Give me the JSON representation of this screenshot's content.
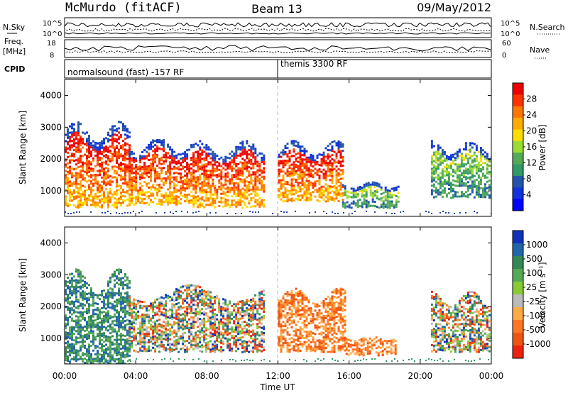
{
  "header": {
    "station": "McMurdo (fitACF)",
    "beam": "Beam 13",
    "date": "09/May/2012"
  },
  "status_panels": {
    "left_labels": [
      "N.Sky",
      "Freq.",
      "[MHz]",
      "CPID"
    ],
    "right_labels": [
      "N.Search",
      "Nave"
    ],
    "nsky_ticks": [
      "10^5",
      "10^0"
    ],
    "nsearch_ticks": [
      "10^5",
      "10^0"
    ],
    "freq_ticks": [
      "18",
      "8"
    ],
    "nave_ticks": [
      "60",
      "0"
    ],
    "cpid_segments": [
      {
        "label": "normalsound (fast) -157 RF",
        "start_hour": 0
      },
      {
        "label": "themis 3300 RF",
        "start_hour": 12
      }
    ]
  },
  "time_axis": {
    "label": "Time UT",
    "ticks": [
      "00:00",
      "04:00",
      "08:00",
      "12:00",
      "16:00",
      "20:00",
      "00:00"
    ]
  },
  "chart_data": [
    {
      "type": "heatmap",
      "title": "",
      "xlabel": "Time UT",
      "ylabel": "Slant Range [km]",
      "xlim": [
        0,
        24
      ],
      "ylim": [
        200,
        4500
      ],
      "y_ticks": [
        "1000",
        "2000",
        "3000",
        "4000"
      ],
      "colorbar": {
        "label": "Power [dB]",
        "ticks": [
          "28",
          "24",
          "20",
          "16",
          "12",
          "8",
          "4"
        ],
        "colors": [
          "#ee0000",
          "#ff3300",
          "#ff7700",
          "#ffaa00",
          "#ffdd00",
          "#99dd33",
          "#55aa55",
          "#339966",
          "#2255aa",
          "#1133dd",
          "#0000ff"
        ]
      },
      "data_regions": [
        {
          "t0": 0.0,
          "t1": 3.6,
          "r0": 500,
          "r1": 3200,
          "level": "high"
        },
        {
          "t0": 3.6,
          "t1": 7.2,
          "r0": 600,
          "r1": 2700,
          "level": "high"
        },
        {
          "t0": 7.2,
          "t1": 11.2,
          "r0": 500,
          "r1": 2600,
          "level": "high"
        },
        {
          "t0": 12.0,
          "t1": 15.6,
          "r0": 700,
          "r1": 2600,
          "level": "high"
        },
        {
          "t0": 15.6,
          "t1": 18.8,
          "r0": 500,
          "r1": 1300,
          "level": "low"
        },
        {
          "t0": 20.6,
          "t1": 24.0,
          "r0": 800,
          "r1": 2600,
          "level": "low"
        }
      ]
    },
    {
      "type": "heatmap",
      "title": "",
      "xlabel": "Time UT",
      "ylabel": "Slant Range [km]",
      "xlim": [
        0,
        24
      ],
      "ylim": [
        200,
        4500
      ],
      "y_ticks": [
        "1000",
        "2000",
        "3000",
        "4000"
      ],
      "colorbar": {
        "label": "Velocity [m s⁻¹]",
        "ticks": [
          "1000",
          "500",
          "100",
          "25",
          "-25",
          "-100",
          "-500",
          "-1000"
        ],
        "colors": [
          "#1133bb",
          "#2266aa",
          "#338855",
          "#55aa55",
          "#88cc33",
          "#bbbbbb",
          "#ffaa44",
          "#ff7722",
          "#ee5511",
          "#ee2211"
        ]
      },
      "data_regions": [
        {
          "t0": 0.0,
          "t1": 3.6,
          "r0": 200,
          "r1": 3200,
          "level": "positive"
        },
        {
          "t0": 3.6,
          "t1": 11.2,
          "r0": 600,
          "r1": 2700,
          "level": "mixed"
        },
        {
          "t0": 12.0,
          "t1": 15.8,
          "r0": 600,
          "r1": 2600,
          "level": "negative"
        },
        {
          "t0": 15.8,
          "t1": 18.6,
          "r0": 500,
          "r1": 1100,
          "level": "negative"
        },
        {
          "t0": 20.6,
          "t1": 24.0,
          "r0": 600,
          "r1": 2500,
          "level": "mixed"
        }
      ]
    }
  ]
}
